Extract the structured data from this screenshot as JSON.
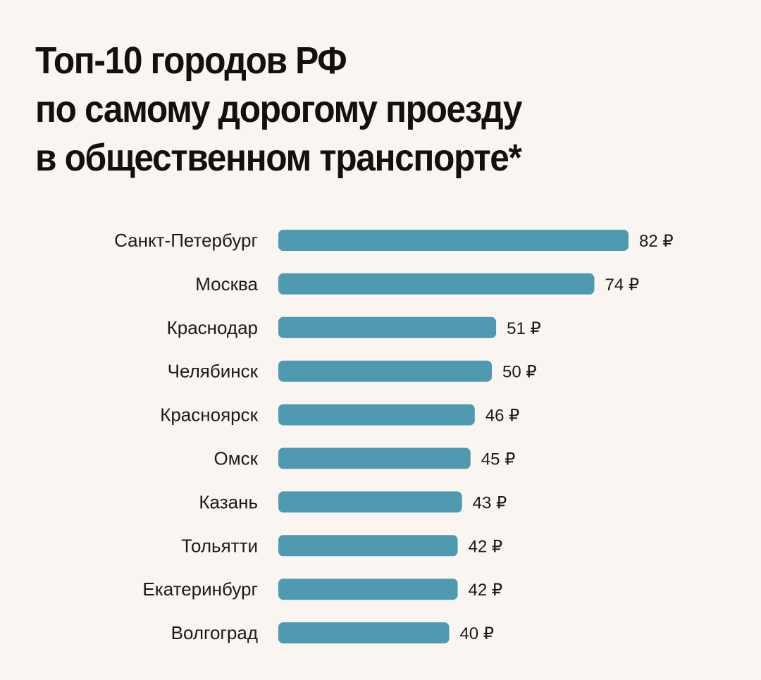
{
  "chart_data": {
    "type": "bar",
    "orientation": "horizontal",
    "title_lines": [
      "Топ-10 городов РФ",
      "по самому дорогому проезду",
      "в общественном транспорте*"
    ],
    "categories": [
      "Санкт-Петербург",
      "Москва",
      "Краснодар",
      "Челябинск",
      "Красноярск",
      "Омск",
      "Казань",
      "Тольятти",
      "Екатеринбург",
      "Волгоград"
    ],
    "values": [
      82,
      74,
      51,
      50,
      46,
      45,
      43,
      42,
      42,
      40
    ],
    "value_suffix": " ₽",
    "xlabel": "",
    "ylabel": "",
    "xlim": [
      0,
      82
    ],
    "grid": false,
    "bar_color": "#4f9ab0",
    "background": "#fbf5f2"
  }
}
